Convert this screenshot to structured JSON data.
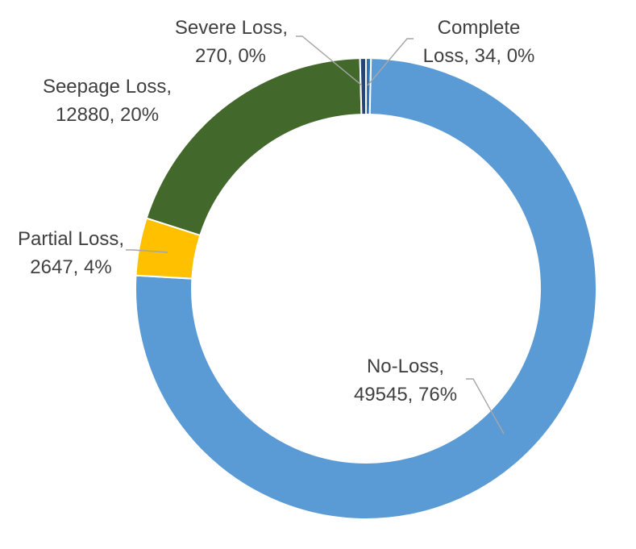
{
  "chart_data": {
    "type": "pie",
    "style": "donut",
    "slices": [
      {
        "category": "Complete Loss",
        "value": 34,
        "percent": "0%",
        "color": "#2e75b6"
      },
      {
        "category": "No-Loss",
        "value": 49545,
        "percent": "76%",
        "color": "#5b9bd5"
      },
      {
        "category": "Partial Loss",
        "value": 2647,
        "percent": "4%",
        "color": "#ffc000"
      },
      {
        "category": "Seepage Loss",
        "value": 12880,
        "percent": "20%",
        "color": "#43682b"
      },
      {
        "category": "Severe Loss",
        "value": 270,
        "percent": "0%",
        "color": "#264478"
      }
    ],
    "labels": {
      "complete": {
        "line1": "Complete",
        "line2": "Loss, 34, 0%"
      },
      "no_loss": {
        "line1": "No-Loss,",
        "line2": "49545, 76%"
      },
      "partial": {
        "line1": "Partial Loss,",
        "line2": "2647, 4%"
      },
      "seepage": {
        "line1": "Seepage Loss,",
        "line2": "12880, 20%"
      },
      "severe": {
        "line1": "Severe Loss,",
        "line2": "270, 0%"
      }
    },
    "legend": "none"
  }
}
